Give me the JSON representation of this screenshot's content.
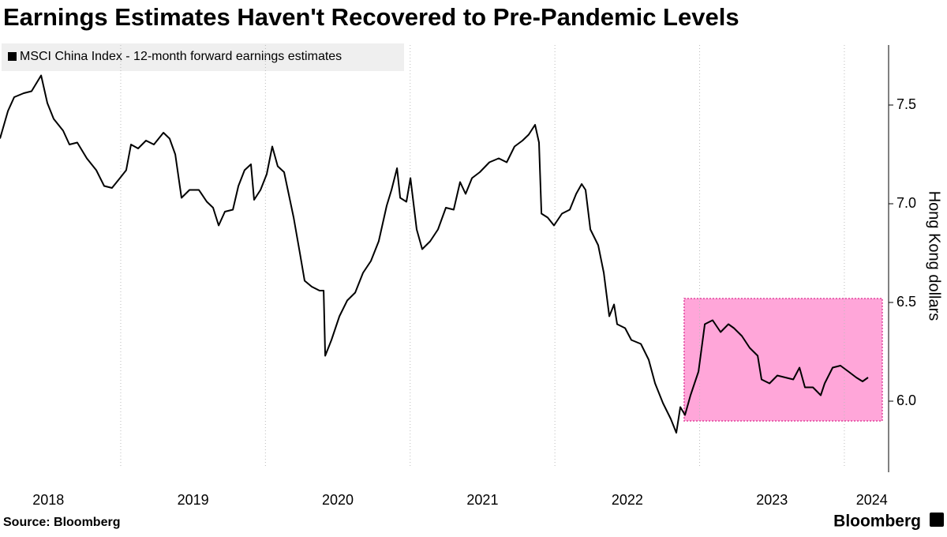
{
  "chart_data": {
    "type": "line",
    "title": "Earnings Estimates Haven't Recovered to Pre-Pandemic Levels",
    "y_axis_label": "Hong Kong dollars",
    "source": "Source: Bloomberg",
    "brand": "Bloomberg",
    "legend_position": "upper-left",
    "series": [
      {
        "name": "MSCI China Index - 12-month forward earnings estimates",
        "color": "#000000",
        "x": [
          2018.166,
          2018.221,
          2018.264,
          2018.33,
          2018.384,
          2018.45,
          2018.493,
          2018.537,
          2018.602,
          2018.646,
          2018.7,
          2018.766,
          2018.831,
          2018.886,
          2018.94,
          2018.995,
          2019.038,
          2019.071,
          2019.12,
          2019.175,
          2019.229,
          2019.295,
          2019.338,
          2019.377,
          2019.42,
          2019.475,
          2019.54,
          2019.595,
          2019.638,
          2019.677,
          2019.72,
          2019.775,
          2019.813,
          2019.856,
          2019.9,
          2019.922,
          2019.966,
          2020.009,
          2020.047,
          2020.085,
          2020.129,
          2020.195,
          2020.238,
          2020.271,
          2020.32,
          2020.374,
          2020.402,
          2020.413,
          2020.456,
          2020.511,
          2020.565,
          2020.62,
          2020.674,
          2020.729,
          2020.783,
          2020.838,
          2020.871,
          2020.909,
          2020.931,
          2020.974,
          2021.002,
          2021.045,
          2021.083,
          2021.138,
          2021.192,
          2021.247,
          2021.301,
          2021.345,
          2021.383,
          2021.427,
          2021.481,
          2021.547,
          2021.612,
          2021.667,
          2021.721,
          2021.776,
          2021.819,
          2021.863,
          2021.89,
          2021.907,
          2021.95,
          2021.994,
          2022.049,
          2022.103,
          2022.147,
          2022.185,
          2022.212,
          2022.245,
          2022.299,
          2022.338,
          2022.376,
          2022.409,
          2022.43,
          2022.485,
          2022.528,
          2022.594,
          2022.648,
          2022.692,
          2022.747,
          2022.801,
          2022.839,
          2022.867,
          2022.899,
          2022.937,
          2022.992,
          2023.036,
          2023.09,
          2023.145,
          2023.199,
          2023.237,
          2023.292,
          2023.346,
          2023.401,
          2023.428,
          2023.483,
          2023.537,
          2023.592,
          2023.647,
          2023.69,
          2023.728,
          2023.783,
          2023.837,
          2023.864,
          2023.919,
          2023.973,
          2024.028,
          2024.082,
          2024.126,
          2024.164
        ],
        "values": [
          7.33,
          7.47,
          7.54,
          7.56,
          7.57,
          7.65,
          7.51,
          7.43,
          7.37,
          7.3,
          7.31,
          7.23,
          7.17,
          7.09,
          7.08,
          7.13,
          7.17,
          7.3,
          7.28,
          7.32,
          7.3,
          7.36,
          7.33,
          7.25,
          7.03,
          7.07,
          7.07,
          7.01,
          6.98,
          6.89,
          6.96,
          6.97,
          7.09,
          7.17,
          7.2,
          7.02,
          7.07,
          7.15,
          7.29,
          7.19,
          7.16,
          6.93,
          6.75,
          6.61,
          6.58,
          6.56,
          6.56,
          6.23,
          6.31,
          6.43,
          6.51,
          6.55,
          6.65,
          6.71,
          6.81,
          6.99,
          7.07,
          7.18,
          7.03,
          7.01,
          7.13,
          6.87,
          6.77,
          6.81,
          6.87,
          6.98,
          6.97,
          7.11,
          7.05,
          7.13,
          7.16,
          7.21,
          7.23,
          7.21,
          7.29,
          7.32,
          7.35,
          7.4,
          7.31,
          6.95,
          6.93,
          6.89,
          6.95,
          6.97,
          7.05,
          7.1,
          7.07,
          6.87,
          6.79,
          6.65,
          6.43,
          6.49,
          6.39,
          6.37,
          6.31,
          6.29,
          6.21,
          6.09,
          5.99,
          5.91,
          5.84,
          5.97,
          5.93,
          6.03,
          6.15,
          6.39,
          6.41,
          6.35,
          6.39,
          6.37,
          6.33,
          6.27,
          6.23,
          6.11,
          6.09,
          6.13,
          6.12,
          6.11,
          6.17,
          6.07,
          6.07,
          6.03,
          6.09,
          6.17,
          6.18,
          6.15,
          6.12,
          6.1,
          6.12
        ]
      }
    ],
    "xlim": [
      2018.166,
      2024.273
    ],
    "xticks": [
      {
        "value": 2018.5,
        "label": "2018"
      },
      {
        "value": 2019.5,
        "label": "2019"
      },
      {
        "value": 2020.5,
        "label": "2020"
      },
      {
        "value": 2021.5,
        "label": "2021"
      },
      {
        "value": 2022.5,
        "label": "2022"
      },
      {
        "value": 2023.5,
        "label": "2023"
      },
      {
        "value": 2024.19,
        "label": "2024"
      }
    ],
    "x_gridlines": [
      2019,
      2020,
      2021,
      2022,
      2023,
      2024
    ],
    "ylim": [
      5.66,
      7.804
    ],
    "yticks": [
      {
        "value": 6,
        "label": "6.0"
      },
      6.5,
      {
        "value": 7,
        "label": "7.0"
      },
      7.5
    ],
    "highlight": {
      "x": [
        2022.893,
        2024.262
      ],
      "y": [
        5.9,
        6.52
      ],
      "color": "#ffa6d9",
      "border": "#e0409a"
    }
  }
}
